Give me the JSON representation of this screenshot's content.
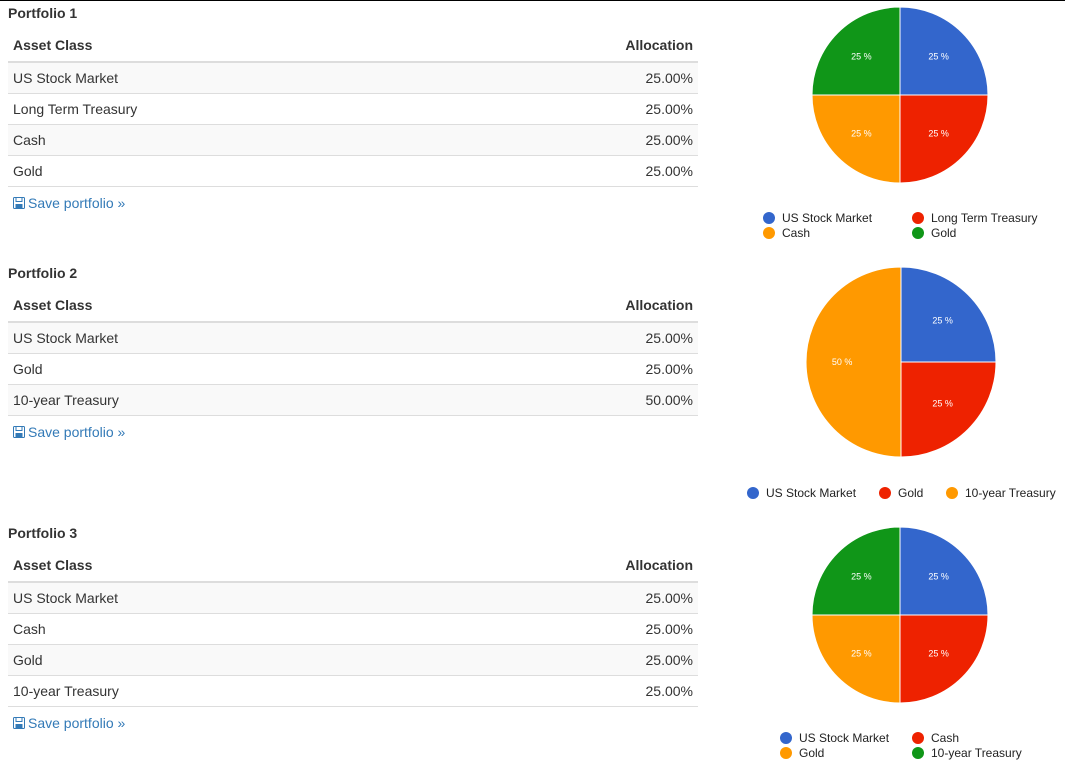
{
  "colors": {
    "blue": "#3366cc",
    "red": "#ee2200",
    "orange": "#ff9900",
    "green": "#109618",
    "link": "#337ab7"
  },
  "table_headers": {
    "asset_class": "Asset Class",
    "allocation": "Allocation"
  },
  "save_label": "Save portfolio »",
  "portfolios": [
    {
      "title": "Portfolio 1",
      "rows": [
        {
          "asset": "US Stock Market",
          "allocation": "25.00%"
        },
        {
          "asset": "Long Term Treasury",
          "allocation": "25.00%"
        },
        {
          "asset": "Cash",
          "allocation": "25.00%"
        },
        {
          "asset": "Gold",
          "allocation": "25.00%"
        }
      ]
    },
    {
      "title": "Portfolio 2",
      "rows": [
        {
          "asset": "US Stock Market",
          "allocation": "25.00%"
        },
        {
          "asset": "Gold",
          "allocation": "25.00%"
        },
        {
          "asset": "10-year Treasury",
          "allocation": "50.00%"
        }
      ]
    },
    {
      "title": "Portfolio 3",
      "rows": [
        {
          "asset": "US Stock Market",
          "allocation": "25.00%"
        },
        {
          "asset": "Cash",
          "allocation": "25.00%"
        },
        {
          "asset": "Gold",
          "allocation": "25.00%"
        },
        {
          "asset": "10-year Treasury",
          "allocation": "25.00%"
        }
      ]
    }
  ],
  "chart_data": [
    {
      "type": "pie",
      "slices": [
        {
          "label": "US Stock Market",
          "value": 25,
          "display": "25 %",
          "color": "#3366cc"
        },
        {
          "label": "Long Term Treasury",
          "value": 25,
          "display": "25 %",
          "color": "#ee2200"
        },
        {
          "label": "Cash",
          "value": 25,
          "display": "25 %",
          "color": "#ff9900"
        },
        {
          "label": "Gold",
          "value": 25,
          "display": "25 %",
          "color": "#109618"
        }
      ],
      "legend_position": "bottom"
    },
    {
      "type": "pie",
      "slices": [
        {
          "label": "US Stock Market",
          "value": 25,
          "display": "25 %",
          "color": "#3366cc"
        },
        {
          "label": "Gold",
          "value": 25,
          "display": "25 %",
          "color": "#ee2200"
        },
        {
          "label": "10-year Treasury",
          "value": 50,
          "display": "50 %",
          "color": "#ff9900"
        }
      ],
      "legend_position": "bottom"
    },
    {
      "type": "pie",
      "slices": [
        {
          "label": "US Stock Market",
          "value": 25,
          "display": "25 %",
          "color": "#3366cc"
        },
        {
          "label": "Cash",
          "value": 25,
          "display": "25 %",
          "color": "#ee2200"
        },
        {
          "label": "Gold",
          "value": 25,
          "display": "25 %",
          "color": "#ff9900"
        },
        {
          "label": "10-year Treasury",
          "value": 25,
          "display": "25 %",
          "color": "#109618"
        }
      ],
      "legend_position": "bottom"
    }
  ]
}
